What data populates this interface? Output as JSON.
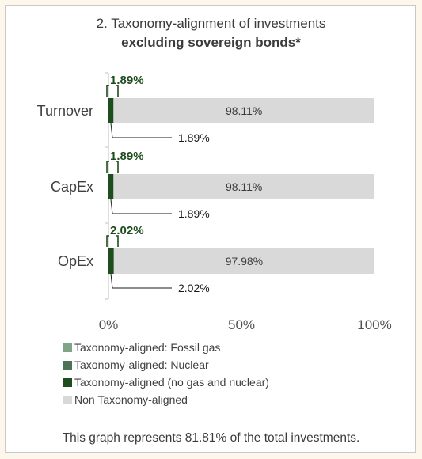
{
  "chart_data": {
    "type": "bar",
    "stacked": true,
    "orientation": "horizontal",
    "title": "2. Taxonomy-alignment of investments",
    "subtitle": "excluding sovereign bonds*",
    "categories": [
      "Turnover",
      "CapEx",
      "OpEx"
    ],
    "series": [
      {
        "name": "Taxonomy-aligned: Fossil gas",
        "color": "#7fa587",
        "values": [
          0,
          0,
          0
        ]
      },
      {
        "name": "Taxonomy-aligned: Nuclear",
        "color": "#4d7256",
        "values": [
          0,
          0,
          0
        ]
      },
      {
        "name": "Taxonomy-aligned (no gas and nuclear)",
        "color": "#1e4d1e",
        "values": [
          1.89,
          1.89,
          2.02
        ]
      },
      {
        "name": "Non Taxonomy-aligned",
        "color": "#d9d9d9",
        "values": [
          98.11,
          98.11,
          97.98
        ]
      }
    ],
    "xlim": [
      0,
      100
    ],
    "xticks": [
      "0%",
      "50%",
      "100%"
    ],
    "aligned_callouts": [
      "1.89%",
      "1.89%",
      "2.02%"
    ],
    "aligned_labels": [
      "1.89%",
      "1.89%",
      "2.02%"
    ],
    "non_aligned_labels": [
      "98.11%",
      "98.11%",
      "97.98%"
    ],
    "label_colors": {
      "callout": "#1e4d1e",
      "text": "#3b3b3b"
    },
    "legend_position": "bottom-left"
  },
  "footnote": "This graph represents 81.81% of the total investments."
}
